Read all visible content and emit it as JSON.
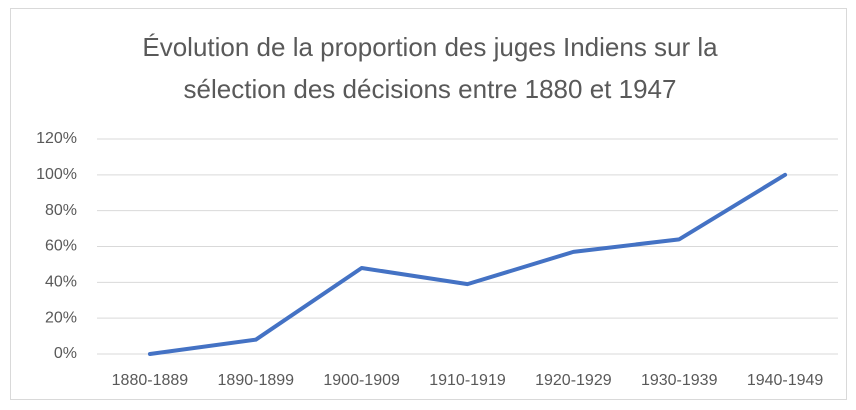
{
  "chart_data": {
    "type": "line",
    "title": "Évolution de la proportion des juges Indiens sur la sélection des décisions entre 1880 et 1947",
    "categories": [
      "1880-1889",
      "1890-1899",
      "1900-1909",
      "1910-1919",
      "1920-1929",
      "1930-1939",
      "1940-1949"
    ],
    "values": [
      0,
      8,
      48,
      39,
      57,
      64,
      100
    ],
    "color": "#4472c4",
    "ylim": [
      0,
      120
    ],
    "yticks": [
      {
        "value": 0,
        "label": "0%"
      },
      {
        "value": 20,
        "label": "20%"
      },
      {
        "value": 40,
        "label": "40%"
      },
      {
        "value": 60,
        "label": "60%"
      },
      {
        "value": 80,
        "label": "80%"
      },
      {
        "value": 100,
        "label": "100%"
      },
      {
        "value": 120,
        "label": "120%"
      }
    ],
    "grid": true
  }
}
